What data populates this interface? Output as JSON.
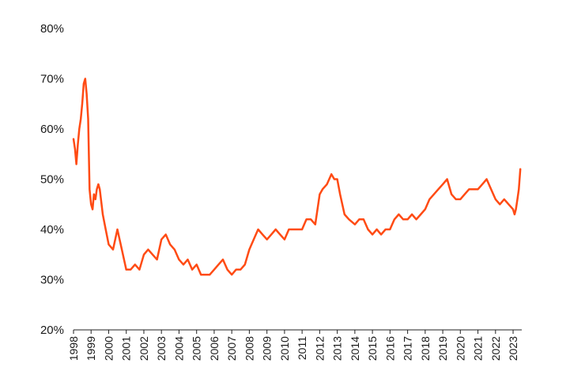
{
  "chart_data": {
    "type": "line",
    "title": "",
    "xlabel": "",
    "ylabel": "",
    "ylim": [
      0.2,
      0.8
    ],
    "xlim": [
      "1998-01-01",
      "2023-06-30"
    ],
    "y_ticks": [
      {
        "value": 0.2,
        "label": "20%"
      },
      {
        "value": 0.3,
        "label": "30%"
      },
      {
        "value": 0.4,
        "label": "40%"
      },
      {
        "value": 0.5,
        "label": "50%"
      },
      {
        "value": 0.6,
        "label": "60%"
      },
      {
        "value": 0.7,
        "label": "70%"
      },
      {
        "value": 0.8,
        "label": "80%"
      }
    ],
    "x_ticks": [
      "1998",
      "1999",
      "2000",
      "2001",
      "2002",
      "2003",
      "2004",
      "2005",
      "2006",
      "2007",
      "2008",
      "2009",
      "2010",
      "2011",
      "2012",
      "2013",
      "2014",
      "2015",
      "2016",
      "2017",
      "2018",
      "2019",
      "2020",
      "2021",
      "2022",
      "2023"
    ],
    "grid": false,
    "series_color": "#FF4B14",
    "series": [
      {
        "x": [
          "1998-01-01",
          "1998-02-01",
          "1998-03-01",
          "1998-04-01",
          "1998-05-01",
          "1998-06-01",
          "1998-07-01",
          "1998-08-01",
          "1998-09-01",
          "1998-10-01",
          "1998-11-01",
          "1998-12-01",
          "1999-01-01",
          "1999-02-01",
          "1999-03-01",
          "1999-04-01",
          "1999-05-01",
          "1999-06-01",
          "1999-07-01",
          "1999-09-01",
          "1999-11-01",
          "2000-01-01",
          "2000-04-01",
          "2000-07-01",
          "2000-10-01",
          "2001-01-01",
          "2001-04-01",
          "2001-07-01",
          "2001-10-01",
          "2002-01-01",
          "2002-04-01",
          "2002-07-01",
          "2002-10-01",
          "2003-01-01",
          "2003-04-01",
          "2003-07-01",
          "2003-10-01",
          "2004-01-01",
          "2004-04-01",
          "2004-07-01",
          "2004-10-01",
          "2005-01-01",
          "2005-04-01",
          "2005-07-01",
          "2005-10-01",
          "2006-01-01",
          "2006-04-01",
          "2006-07-01",
          "2006-10-01",
          "2007-01-01",
          "2007-04-01",
          "2007-07-01",
          "2007-10-01",
          "2008-01-01",
          "2008-04-01",
          "2008-07-01",
          "2008-10-01",
          "2009-01-01",
          "2009-04-01",
          "2009-07-01",
          "2009-10-01",
          "2010-01-01",
          "2010-04-01",
          "2010-07-01",
          "2010-10-01",
          "2011-01-01",
          "2011-04-01",
          "2011-07-01",
          "2011-10-01",
          "2012-01-01",
          "2012-03-01",
          "2012-06-01",
          "2012-09-01",
          "2012-11-01",
          "2013-01-01",
          "2013-03-01",
          "2013-06-01",
          "2013-09-01",
          "2014-01-01",
          "2014-04-01",
          "2014-07-01",
          "2014-10-01",
          "2015-01-01",
          "2015-04-01",
          "2015-07-01",
          "2015-10-01",
          "2016-01-01",
          "2016-04-01",
          "2016-07-01",
          "2016-10-01",
          "2017-01-01",
          "2017-04-01",
          "2017-07-01",
          "2017-10-01",
          "2018-01-01",
          "2018-04-01",
          "2018-07-01",
          "2018-10-01",
          "2019-01-01",
          "2019-04-01",
          "2019-07-01",
          "2019-10-01",
          "2020-01-01",
          "2020-04-01",
          "2020-07-01",
          "2020-10-01",
          "2021-01-01",
          "2021-04-01",
          "2021-07-01",
          "2021-10-01",
          "2022-01-01",
          "2022-04-01",
          "2022-07-01",
          "2022-10-01",
          "2023-01-01",
          "2023-02-01",
          "2023-03-01",
          "2023-04-01",
          "2023-05-01",
          "2023-06-01"
        ],
        "y": [
          0.58,
          0.56,
          0.53,
          0.57,
          0.6,
          0.62,
          0.65,
          0.69,
          0.7,
          0.67,
          0.62,
          0.48,
          0.45,
          0.44,
          0.47,
          0.46,
          0.48,
          0.49,
          0.48,
          0.43,
          0.4,
          0.37,
          0.36,
          0.4,
          0.36,
          0.32,
          0.32,
          0.33,
          0.32,
          0.35,
          0.36,
          0.35,
          0.34,
          0.38,
          0.39,
          0.37,
          0.36,
          0.34,
          0.33,
          0.34,
          0.32,
          0.33,
          0.31,
          0.31,
          0.31,
          0.32,
          0.33,
          0.34,
          0.32,
          0.31,
          0.32,
          0.32,
          0.33,
          0.36,
          0.38,
          0.4,
          0.39,
          0.38,
          0.39,
          0.4,
          0.39,
          0.38,
          0.4,
          0.4,
          0.4,
          0.4,
          0.42,
          0.42,
          0.41,
          0.47,
          0.48,
          0.49,
          0.51,
          0.5,
          0.5,
          0.47,
          0.43,
          0.42,
          0.41,
          0.42,
          0.42,
          0.4,
          0.39,
          0.4,
          0.39,
          0.4,
          0.4,
          0.42,
          0.43,
          0.42,
          0.42,
          0.43,
          0.42,
          0.43,
          0.44,
          0.46,
          0.47,
          0.48,
          0.49,
          0.5,
          0.47,
          0.46,
          0.46,
          0.47,
          0.48,
          0.48,
          0.48,
          0.49,
          0.5,
          0.48,
          0.46,
          0.45,
          0.46,
          0.45,
          0.44,
          0.43,
          0.44,
          0.46,
          0.48,
          0.52
        ]
      }
    ]
  }
}
